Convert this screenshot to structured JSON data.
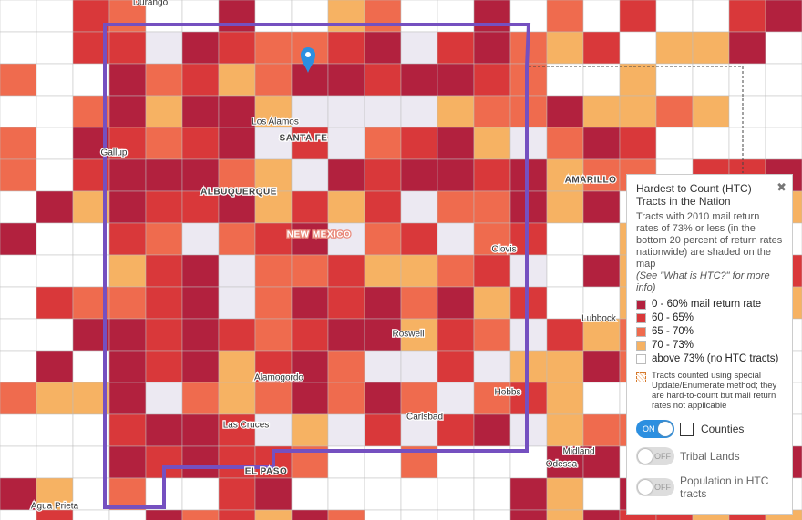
{
  "map": {
    "places": [
      "Durango",
      "Los Alamos",
      "SANTA FE",
      "Gallup",
      "ALBUQUERQUE",
      "NEW MEXICO",
      "AMARILLO",
      "Clovis",
      "Lubbock",
      "Roswell",
      "Alamogordo",
      "Hobbs",
      "Las Cruces",
      "Carlsbad",
      "EL PASO",
      "Midland",
      "Odessa",
      "Agua Prieta"
    ]
  },
  "legend": {
    "title": "Hardest to Count (HTC) Tracts in the Nation",
    "close": "✖",
    "description": "Tracts with 2010 mail return rates of 73% or less (in the bottom 20 percent of return rates nationwide) are shaded on the map",
    "info": "(See \"What is HTC?\" for more info)",
    "items": [
      "0 - 60% mail return rate",
      "60 - 65%",
      "65 - 70%",
      "70 - 73%",
      "above 73% (no HTC tracts)"
    ],
    "note": "Tracts counted using special Update/Enumerate method; they are hard-to-count but mail return rates not applicable"
  },
  "toggles": [
    {
      "state": "ON",
      "label": "Counties"
    },
    {
      "state": "OFF",
      "label": "Tribal Lands"
    },
    {
      "state": "OFF",
      "label": "Population in HTC tracts"
    }
  ]
}
